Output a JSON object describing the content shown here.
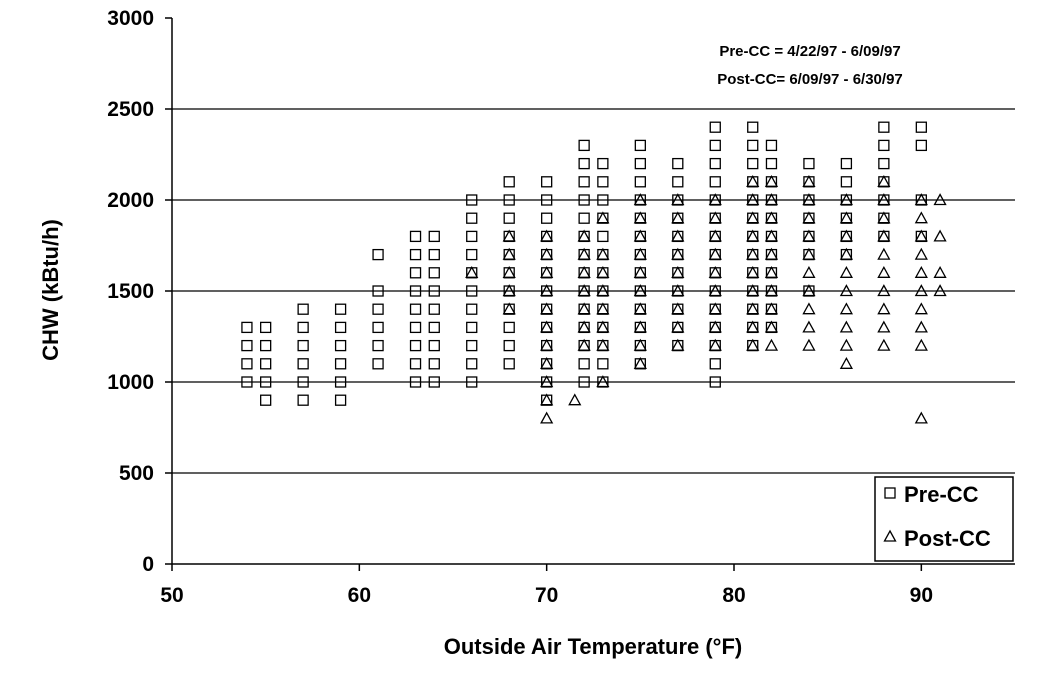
{
  "chart_data": {
    "type": "scatter",
    "xlabel": "Outside Air Temperature (°F)",
    "ylabel": "CHW (kBtu/h)",
    "xlim": [
      50,
      95
    ],
    "ylim": [
      0,
      3000
    ],
    "x_ticks": [
      50,
      60,
      70,
      80,
      90
    ],
    "y_ticks": [
      0,
      500,
      1000,
      1500,
      2000,
      2500,
      3000
    ],
    "grid": "horizontal",
    "legend_position": "bottom-right",
    "annotations": [
      "Pre-CC = 4/22/97 - 6/09/97",
      "Post-CC= 6/09/97 - 6/30/97"
    ],
    "series": [
      {
        "name": "Pre-CC",
        "marker": "square",
        "points": [
          [
            54,
            1000
          ],
          [
            54,
            1100
          ],
          [
            54,
            1200
          ],
          [
            54,
            1300
          ],
          [
            55,
            900
          ],
          [
            55,
            1000
          ],
          [
            55,
            1100
          ],
          [
            55,
            1200
          ],
          [
            55,
            1300
          ],
          [
            57,
            900
          ],
          [
            57,
            1000
          ],
          [
            57,
            1100
          ],
          [
            57,
            1200
          ],
          [
            57,
            1300
          ],
          [
            57,
            1400
          ],
          [
            59,
            900
          ],
          [
            59,
            1000
          ],
          [
            59,
            1100
          ],
          [
            59,
            1200
          ],
          [
            59,
            1300
          ],
          [
            59,
            1400
          ],
          [
            61,
            1100
          ],
          [
            61,
            1200
          ],
          [
            61,
            1300
          ],
          [
            61,
            1400
          ],
          [
            61,
            1500
          ],
          [
            61,
            1700
          ],
          [
            63,
            1000
          ],
          [
            63,
            1100
          ],
          [
            63,
            1200
          ],
          [
            63,
            1300
          ],
          [
            63,
            1400
          ],
          [
            63,
            1500
          ],
          [
            63,
            1600
          ],
          [
            63,
            1700
          ],
          [
            63,
            1800
          ],
          [
            64,
            1000
          ],
          [
            64,
            1100
          ],
          [
            64,
            1200
          ],
          [
            64,
            1300
          ],
          [
            64,
            1400
          ],
          [
            64,
            1500
          ],
          [
            64,
            1600
          ],
          [
            64,
            1700
          ],
          [
            64,
            1800
          ],
          [
            66,
            1000
          ],
          [
            66,
            1100
          ],
          [
            66,
            1200
          ],
          [
            66,
            1300
          ],
          [
            66,
            1400
          ],
          [
            66,
            1500
          ],
          [
            66,
            1600
          ],
          [
            66,
            1700
          ],
          [
            66,
            1800
          ],
          [
            66,
            1900
          ],
          [
            66,
            2000
          ],
          [
            68,
            1100
          ],
          [
            68,
            1200
          ],
          [
            68,
            1300
          ],
          [
            68,
            1400
          ],
          [
            68,
            1500
          ],
          [
            68,
            1600
          ],
          [
            68,
            1700
          ],
          [
            68,
            1800
          ],
          [
            68,
            1900
          ],
          [
            68,
            2000
          ],
          [
            68,
            2100
          ],
          [
            70,
            900
          ],
          [
            70,
            1000
          ],
          [
            70,
            1100
          ],
          [
            70,
            1200
          ],
          [
            70,
            1300
          ],
          [
            70,
            1400
          ],
          [
            70,
            1500
          ],
          [
            70,
            1600
          ],
          [
            70,
            1700
          ],
          [
            70,
            1800
          ],
          [
            70,
            1900
          ],
          [
            70,
            2000
          ],
          [
            70,
            2100
          ],
          [
            72,
            1000
          ],
          [
            72,
            1100
          ],
          [
            72,
            1200
          ],
          [
            72,
            1300
          ],
          [
            72,
            1400
          ],
          [
            72,
            1500
          ],
          [
            72,
            1600
          ],
          [
            72,
            1700
          ],
          [
            72,
            1800
          ],
          [
            72,
            1900
          ],
          [
            72,
            2000
          ],
          [
            72,
            2100
          ],
          [
            72,
            2200
          ],
          [
            72,
            2300
          ],
          [
            73,
            1000
          ],
          [
            73,
            1100
          ],
          [
            73,
            1200
          ],
          [
            73,
            1300
          ],
          [
            73,
            1400
          ],
          [
            73,
            1500
          ],
          [
            73,
            1600
          ],
          [
            73,
            1700
          ],
          [
            73,
            1800
          ],
          [
            73,
            1900
          ],
          [
            73,
            2000
          ],
          [
            73,
            2100
          ],
          [
            73,
            2200
          ],
          [
            75,
            1100
          ],
          [
            75,
            1200
          ],
          [
            75,
            1300
          ],
          [
            75,
            1400
          ],
          [
            75,
            1500
          ],
          [
            75,
            1600
          ],
          [
            75,
            1700
          ],
          [
            75,
            1800
          ],
          [
            75,
            1900
          ],
          [
            75,
            2000
          ],
          [
            75,
            2100
          ],
          [
            75,
            2200
          ],
          [
            75,
            2300
          ],
          [
            77,
            1200
          ],
          [
            77,
            1300
          ],
          [
            77,
            1400
          ],
          [
            77,
            1500
          ],
          [
            77,
            1600
          ],
          [
            77,
            1700
          ],
          [
            77,
            1800
          ],
          [
            77,
            1900
          ],
          [
            77,
            2000
          ],
          [
            77,
            2100
          ],
          [
            77,
            2200
          ],
          [
            79,
            1000
          ],
          [
            79,
            1100
          ],
          [
            79,
            1200
          ],
          [
            79,
            1300
          ],
          [
            79,
            1400
          ],
          [
            79,
            1500
          ],
          [
            79,
            1600
          ],
          [
            79,
            1700
          ],
          [
            79,
            1800
          ],
          [
            79,
            1900
          ],
          [
            79,
            2000
          ],
          [
            79,
            2100
          ],
          [
            79,
            2200
          ],
          [
            79,
            2300
          ],
          [
            79,
            2400
          ],
          [
            81,
            1200
          ],
          [
            81,
            1300
          ],
          [
            81,
            1400
          ],
          [
            81,
            1500
          ],
          [
            81,
            1600
          ],
          [
            81,
            1700
          ],
          [
            81,
            1800
          ],
          [
            81,
            1900
          ],
          [
            81,
            2000
          ],
          [
            81,
            2100
          ],
          [
            81,
            2200
          ],
          [
            81,
            2300
          ],
          [
            81,
            2400
          ],
          [
            82,
            1300
          ],
          [
            82,
            1400
          ],
          [
            82,
            1500
          ],
          [
            82,
            1600
          ],
          [
            82,
            1700
          ],
          [
            82,
            1800
          ],
          [
            82,
            1900
          ],
          [
            82,
            2000
          ],
          [
            82,
            2100
          ],
          [
            82,
            2200
          ],
          [
            82,
            2300
          ],
          [
            84,
            1500
          ],
          [
            84,
            1700
          ],
          [
            84,
            1800
          ],
          [
            84,
            1900
          ],
          [
            84,
            2000
          ],
          [
            84,
            2100
          ],
          [
            84,
            2200
          ],
          [
            86,
            1700
          ],
          [
            86,
            1800
          ],
          [
            86,
            1900
          ],
          [
            86,
            2000
          ],
          [
            86,
            2100
          ],
          [
            86,
            2200
          ],
          [
            88,
            1800
          ],
          [
            88,
            1900
          ],
          [
            88,
            2000
          ],
          [
            88,
            2100
          ],
          [
            88,
            2200
          ],
          [
            88,
            2300
          ],
          [
            88,
            2400
          ],
          [
            90,
            1800
          ],
          [
            90,
            2000
          ],
          [
            90,
            2300
          ],
          [
            90,
            2400
          ]
        ]
      },
      {
        "name": "Post-CC",
        "marker": "triangle",
        "points": [
          [
            66,
            1600
          ],
          [
            68,
            1400
          ],
          [
            68,
            1500
          ],
          [
            68,
            1600
          ],
          [
            68,
            1700
          ],
          [
            68,
            1800
          ],
          [
            70,
            800
          ],
          [
            70,
            900
          ],
          [
            70,
            1000
          ],
          [
            70,
            1100
          ],
          [
            70,
            1200
          ],
          [
            70,
            1300
          ],
          [
            70,
            1400
          ],
          [
            70,
            1500
          ],
          [
            70,
            1600
          ],
          [
            70,
            1700
          ],
          [
            70,
            1800
          ],
          [
            71.5,
            900
          ],
          [
            72,
            1200
          ],
          [
            72,
            1300
          ],
          [
            72,
            1400
          ],
          [
            72,
            1500
          ],
          [
            72,
            1600
          ],
          [
            72,
            1700
          ],
          [
            72,
            1800
          ],
          [
            73,
            1000
          ],
          [
            73,
            1200
          ],
          [
            73,
            1300
          ],
          [
            73,
            1400
          ],
          [
            73,
            1500
          ],
          [
            73,
            1600
          ],
          [
            73,
            1700
          ],
          [
            73,
            1900
          ],
          [
            75,
            1100
          ],
          [
            75,
            1200
          ],
          [
            75,
            1300
          ],
          [
            75,
            1400
          ],
          [
            75,
            1500
          ],
          [
            75,
            1600
          ],
          [
            75,
            1700
          ],
          [
            75,
            1800
          ],
          [
            75,
            1900
          ],
          [
            75,
            2000
          ],
          [
            77,
            1200
          ],
          [
            77,
            1300
          ],
          [
            77,
            1400
          ],
          [
            77,
            1500
          ],
          [
            77,
            1600
          ],
          [
            77,
            1700
          ],
          [
            77,
            1800
          ],
          [
            77,
            1900
          ],
          [
            77,
            2000
          ],
          [
            79,
            1200
          ],
          [
            79,
            1300
          ],
          [
            79,
            1400
          ],
          [
            79,
            1500
          ],
          [
            79,
            1600
          ],
          [
            79,
            1700
          ],
          [
            79,
            1800
          ],
          [
            79,
            1900
          ],
          [
            79,
            2000
          ],
          [
            81,
            1200
          ],
          [
            81,
            1300
          ],
          [
            81,
            1400
          ],
          [
            81,
            1500
          ],
          [
            81,
            1600
          ],
          [
            81,
            1700
          ],
          [
            81,
            1800
          ],
          [
            81,
            1900
          ],
          [
            81,
            2000
          ],
          [
            81,
            2100
          ],
          [
            82,
            1200
          ],
          [
            82,
            1300
          ],
          [
            82,
            1400
          ],
          [
            82,
            1500
          ],
          [
            82,
            1600
          ],
          [
            82,
            1700
          ],
          [
            82,
            1800
          ],
          [
            82,
            1900
          ],
          [
            82,
            2000
          ],
          [
            82,
            2100
          ],
          [
            84,
            1200
          ],
          [
            84,
            1300
          ],
          [
            84,
            1400
          ],
          [
            84,
            1500
          ],
          [
            84,
            1600
          ],
          [
            84,
            1700
          ],
          [
            84,
            1800
          ],
          [
            84,
            1900
          ],
          [
            84,
            2000
          ],
          [
            84,
            2100
          ],
          [
            86,
            1100
          ],
          [
            86,
            1200
          ],
          [
            86,
            1300
          ],
          [
            86,
            1400
          ],
          [
            86,
            1500
          ],
          [
            86,
            1600
          ],
          [
            86,
            1700
          ],
          [
            86,
            1800
          ],
          [
            86,
            1900
          ],
          [
            86,
            2000
          ],
          [
            88,
            1200
          ],
          [
            88,
            1300
          ],
          [
            88,
            1400
          ],
          [
            88,
            1500
          ],
          [
            88,
            1600
          ],
          [
            88,
            1700
          ],
          [
            88,
            1800
          ],
          [
            88,
            1900
          ],
          [
            88,
            2000
          ],
          [
            88,
            2100
          ],
          [
            90,
            800
          ],
          [
            90,
            1200
          ],
          [
            90,
            1300
          ],
          [
            90,
            1400
          ],
          [
            90,
            1500
          ],
          [
            90,
            1600
          ],
          [
            90,
            1700
          ],
          [
            90,
            1800
          ],
          [
            90,
            1900
          ],
          [
            90,
            2000
          ],
          [
            91,
            1500
          ],
          [
            91,
            1600
          ],
          [
            91,
            1800
          ],
          [
            91,
            2000
          ]
        ]
      }
    ]
  }
}
